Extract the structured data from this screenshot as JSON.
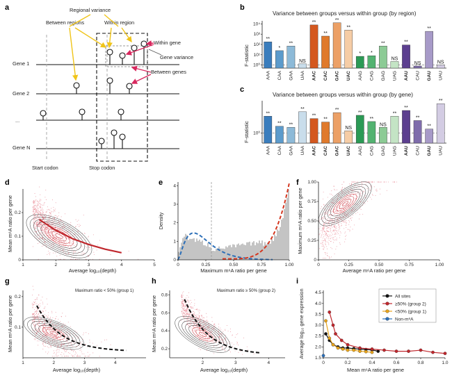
{
  "panel_letters": {
    "a": "a",
    "b": "b",
    "c": "c",
    "d": "d",
    "e": "e",
    "f": "f",
    "g": "g",
    "h": "h",
    "i": "i"
  },
  "diagram_a": {
    "regional_variance": "Regional variance",
    "between_regions": "Between regions",
    "within_region": "Within region",
    "within_gene": "Within gene",
    "gene_variance": "Gene variance",
    "between_genes": "Between genes",
    "genes": [
      "Gene 1",
      "Gene 2",
      "...",
      "Gene N"
    ],
    "start_codon": "Start codon",
    "stop_codon": "Stop codon"
  },
  "chart_data": [
    {
      "id": "b",
      "type": "bar",
      "title": "Variance between groups versus within group (by region)",
      "ylabel": "F-statistic",
      "y_scale": "log",
      "ylim": [
        0.5,
        20000
      ],
      "y_ticks": [
        "10⁰",
        "10¹",
        "10²",
        "10³",
        "10⁴"
      ],
      "reference_line": 1,
      "categories": [
        "AAA",
        "CAA",
        "GAA",
        "UAA",
        "AAC",
        "CAC",
        "GAC",
        "UAC",
        "AAG",
        "CAG",
        "GAG",
        "UAG",
        "AAU",
        "CAU",
        "GAU",
        "UAU"
      ],
      "bold_categories": [
        "AAC",
        "CAC",
        "GAC",
        "UAC",
        "AAU",
        "GAU"
      ],
      "values": [
        180,
        25,
        70,
        1.3,
        8000,
        650,
        13000,
        2500,
        7,
        8,
        70,
        2.2,
        90,
        0.8,
        1900,
        1
      ],
      "significance": [
        "**",
        "*",
        "**",
        "NS",
        "**",
        "**",
        "**",
        "**",
        "*",
        "*",
        "**",
        "NS",
        "**",
        "NS",
        "**",
        "NS"
      ],
      "colors": [
        "#3a7dbd",
        "#5c9bcc",
        "#8dbad8",
        "#c9ddeb",
        "#d4581f",
        "#e07a2c",
        "#eca066",
        "#f6cda6",
        "#2b9a55",
        "#53b371",
        "#8ccb95",
        "#c4e4c5",
        "#5c3f8f",
        "#7e6cab",
        "#a79ac8",
        "#d3cce3"
      ]
    },
    {
      "id": "c",
      "type": "bar",
      "title": "Variance between groups versus within group (by gene)",
      "ylabel": "F-statistic",
      "y_scale": "log",
      "ylim": [
        0.85,
        1.7
      ],
      "y_ticks": [
        "10⁰"
      ],
      "reference_line": 1,
      "categories": [
        "AAA",
        "CAA",
        "GAA",
        "UAA",
        "AAC",
        "CAC",
        "GAC",
        "UAC",
        "AAG",
        "CAG",
        "GAG",
        "UAG",
        "AAU",
        "CAU",
        "GAU",
        "UAU"
      ],
      "bold_categories": [
        "AAC",
        "CAC",
        "GAC",
        "UAC",
        "AAU",
        "GAU"
      ],
      "values": [
        1.32,
        1.12,
        1.1,
        1.42,
        1.27,
        1.2,
        1.4,
        1.04,
        1.34,
        1.21,
        1.1,
        1.32,
        1.45,
        1.23,
        1.07,
        1.62
      ],
      "significance": [
        "**",
        "**",
        "**",
        "**",
        "**",
        "**",
        "**",
        "NS",
        "**",
        "**",
        "NS",
        "**",
        "**",
        "**",
        "**",
        "**"
      ],
      "colors": [
        "#3a7dbd",
        "#5c9bcc",
        "#8dbad8",
        "#c9ddeb",
        "#d4581f",
        "#e07a2c",
        "#eca066",
        "#f6cda6",
        "#2b9a55",
        "#53b371",
        "#8ccb95",
        "#c4e4c5",
        "#5c3f8f",
        "#7e6cab",
        "#a79ac8",
        "#d3cce3"
      ]
    },
    {
      "id": "d",
      "type": "scatter",
      "xlabel": "Average log₁₀(depth)",
      "ylabel": "Mean m⁶A ratio per gene",
      "xlim": [
        1,
        5
      ],
      "ylim": [
        0,
        0.3
      ],
      "x_ticks": [
        "1",
        "2",
        "3",
        "4",
        "5"
      ],
      "y_ticks": [
        "0",
        "0.1",
        "0.2"
      ],
      "trend_line": {
        "x": [
          1.5,
          2,
          2.5,
          3,
          3.5,
          4
        ],
        "y": [
          0.17,
          0.125,
          0.09,
          0.065,
          0.045,
          0.03
        ]
      }
    },
    {
      "id": "e",
      "type": "bar",
      "xlabel": "Maximum m⁶A ratio per gene",
      "ylabel": "Density",
      "xlim": [
        0,
        1
      ],
      "ylim": [
        0,
        4.2
      ],
      "x_ticks": [
        "0",
        "0.25",
        "0.50",
        "0.75",
        "1.00"
      ],
      "y_ticks": [
        "0",
        "1",
        "2",
        "3",
        "4"
      ],
      "threshold": 0.3
    },
    {
      "id": "f",
      "type": "scatter",
      "xlabel": "Average m⁶A ratio per gene",
      "ylabel": "Maximum m⁶A ratio per gene",
      "xlim": [
        0,
        1
      ],
      "ylim": [
        0,
        1
      ],
      "x_ticks": [
        "0",
        "0.25",
        "0.50",
        "0.75",
        "1.00"
      ],
      "y_ticks": [
        "0",
        "0.25",
        "0.50",
        "0.75",
        "1.00"
      ]
    },
    {
      "id": "g",
      "type": "scatter",
      "xlabel": "Average log₁₀(depth)",
      "ylabel": "Mean m⁶A ratio per gene",
      "annotation": "Maximum ratio < 50% (group 1)",
      "xlim": [
        1,
        5
      ],
      "ylim": [
        0,
        0.22
      ],
      "x_ticks": [
        "1",
        "2",
        "3",
        "4"
      ],
      "y_ticks": [
        "0.1",
        "0.2"
      ]
    },
    {
      "id": "h",
      "type": "scatter",
      "xlabel": "Average log₁₀(depth)",
      "ylabel": "Mean m⁶A ratio per gene",
      "annotation": "Maximum ratio ≥ 50% (group 2)",
      "xlim": [
        1,
        4.5
      ],
      "ylim": [
        0.1,
        0.85
      ],
      "x_ticks": [
        "2",
        "3",
        "4"
      ],
      "y_ticks": [
        "0.2",
        "0.4",
        "0.6",
        "0.8"
      ]
    },
    {
      "id": "i",
      "type": "line",
      "xlabel": "Mean m⁶A ratio per gene",
      "ylabel": "Average log₁₀ gene expression",
      "xlim": [
        0,
        1
      ],
      "ylim": [
        1.5,
        4.6
      ],
      "x_ticks": [
        "0",
        "0.2",
        "0.4",
        "0.6",
        "0.8",
        "1.0"
      ],
      "y_ticks": [
        "1.5",
        "2.0",
        "2.5",
        "3.0",
        "3.5",
        "4.0",
        "4.5"
      ],
      "legend_position": "top-right",
      "series": [
        {
          "name": "All sites",
          "color": "#111111",
          "x": [
            0.02,
            0.05,
            0.08,
            0.12,
            0.16,
            0.2,
            0.25,
            0.3,
            0.35,
            0.4,
            0.45
          ],
          "y": [
            2.6,
            2.3,
            2.1,
            2.0,
            1.95,
            1.95,
            1.92,
            1.9,
            1.88,
            1.86,
            1.8
          ]
        },
        {
          "name": "≥50% (group 2)",
          "color": "#c0272d",
          "x": [
            0.05,
            0.08,
            0.1,
            0.15,
            0.2,
            0.3,
            0.4,
            0.5,
            0.6,
            0.7,
            0.8,
            0.9,
            1.0
          ],
          "y": [
            3.6,
            3.0,
            2.6,
            2.3,
            2.1,
            1.95,
            1.9,
            1.85,
            1.8,
            1.8,
            1.85,
            1.75,
            1.7
          ]
        },
        {
          "name": "<50% (group 1)",
          "color": "#e8a41c",
          "x": [
            0.02,
            0.05,
            0.08,
            0.12,
            0.16,
            0.2,
            0.25,
            0.3,
            0.35,
            0.4
          ],
          "y": [
            3.2,
            2.4,
            2.1,
            1.95,
            1.9,
            1.85,
            1.85,
            1.8,
            1.78,
            1.75
          ]
        },
        {
          "name": "Non-m⁶A",
          "color": "#2c6fb8",
          "x": [
            0.0
          ],
          "y": [
            1.6
          ]
        }
      ]
    }
  ]
}
